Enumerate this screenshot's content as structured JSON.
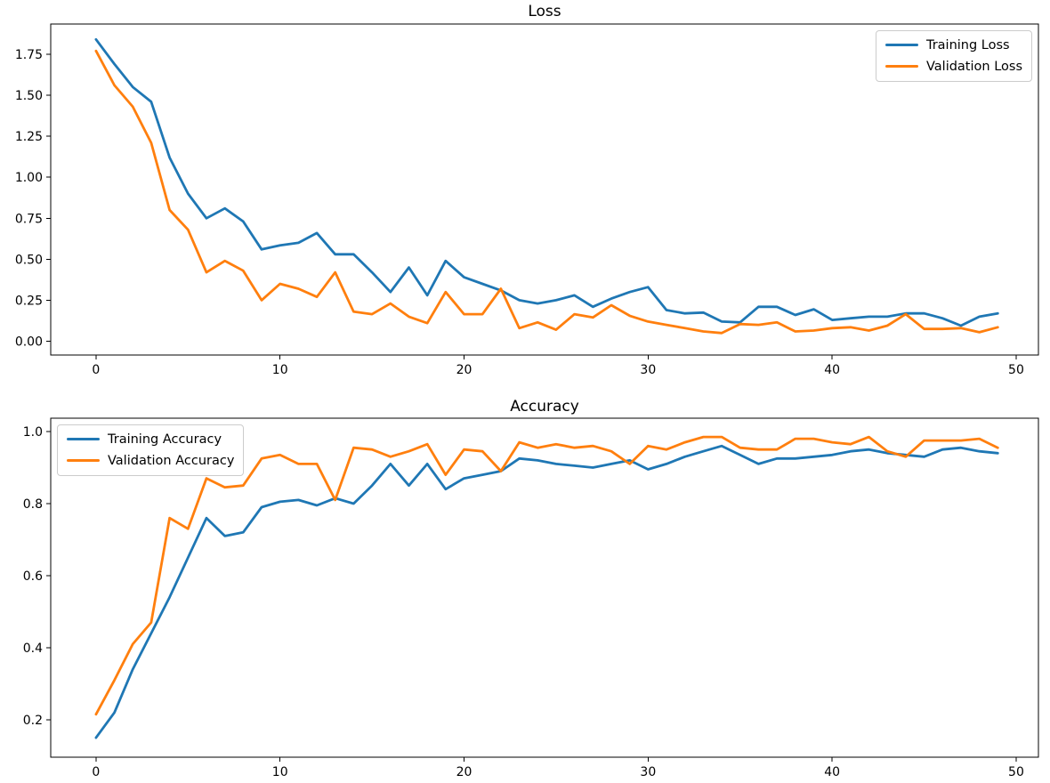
{
  "figure": {
    "background": "#ffffff",
    "axis_color": "#000000"
  },
  "chart_data": [
    {
      "type": "line",
      "title": "Loss",
      "xlabel": "",
      "ylabel": "",
      "grid": false,
      "legend_position": "upper right",
      "x_start": 0,
      "x_step": 1,
      "xlim": [
        -2.46,
        51.21
      ],
      "ylim": [
        -0.084,
        1.934
      ],
      "xticks": [
        0,
        10,
        20,
        30,
        40,
        50
      ],
      "xtick_labels": [
        "0",
        "10",
        "20",
        "30",
        "40",
        "50"
      ],
      "yticks": [
        0.0,
        0.25,
        0.5,
        0.75,
        1.0,
        1.25,
        1.5,
        1.75
      ],
      "ytick_labels": [
        "0.00",
        "0.25",
        "0.50",
        "0.75",
        "1.00",
        "1.25",
        "1.50",
        "1.75"
      ],
      "series": [
        {
          "name": "Training Loss",
          "color": "#1f77b4",
          "values": [
            1.84,
            1.69,
            1.55,
            1.46,
            1.12,
            0.9,
            0.75,
            0.81,
            0.73,
            0.56,
            0.585,
            0.6,
            0.66,
            0.53,
            0.53,
            0.42,
            0.3,
            0.45,
            0.28,
            0.49,
            0.39,
            0.35,
            0.31,
            0.25,
            0.23,
            0.25,
            0.28,
            0.21,
            0.26,
            0.3,
            0.33,
            0.19,
            0.17,
            0.175,
            0.12,
            0.115,
            0.21,
            0.21,
            0.16,
            0.195,
            0.13,
            0.14,
            0.15,
            0.15,
            0.17,
            0.17,
            0.14,
            0.095,
            0.15,
            0.17
          ]
        },
        {
          "name": "Validation Loss",
          "color": "#ff7f0e",
          "values": [
            1.77,
            1.56,
            1.43,
            1.21,
            0.8,
            0.68,
            0.42,
            0.49,
            0.43,
            0.25,
            0.35,
            0.32,
            0.27,
            0.42,
            0.18,
            0.165,
            0.23,
            0.15,
            0.11,
            0.3,
            0.165,
            0.165,
            0.32,
            0.08,
            0.115,
            0.07,
            0.165,
            0.145,
            0.22,
            0.155,
            0.12,
            0.1,
            0.08,
            0.06,
            0.05,
            0.105,
            0.1,
            0.115,
            0.06,
            0.065,
            0.08,
            0.085,
            0.065,
            0.095,
            0.165,
            0.075,
            0.075,
            0.08,
            0.055,
            0.085
          ]
        }
      ]
    },
    {
      "type": "line",
      "title": "Accuracy",
      "xlabel": "",
      "ylabel": "",
      "grid": false,
      "legend_position": "upper left",
      "x_start": 0,
      "x_step": 1,
      "xlim": [
        -2.46,
        51.21
      ],
      "ylim": [
        0.096,
        1.037
      ],
      "xticks": [
        0,
        10,
        20,
        30,
        40,
        50
      ],
      "xtick_labels": [
        "0",
        "10",
        "20",
        "30",
        "40",
        "50"
      ],
      "yticks": [
        0.2,
        0.4,
        0.6,
        0.8,
        1.0
      ],
      "ytick_labels": [
        "0.2",
        "0.4",
        "0.6",
        "0.8",
        "1.0"
      ],
      "series": [
        {
          "name": "Training Accuracy",
          "color": "#1f77b4",
          "values": [
            0.15,
            0.22,
            0.34,
            0.44,
            0.54,
            0.65,
            0.76,
            0.71,
            0.72,
            0.79,
            0.805,
            0.81,
            0.795,
            0.815,
            0.8,
            0.85,
            0.91,
            0.85,
            0.91,
            0.84,
            0.87,
            0.88,
            0.89,
            0.925,
            0.92,
            0.91,
            0.905,
            0.9,
            0.91,
            0.92,
            0.895,
            0.91,
            0.93,
            0.945,
            0.96,
            0.935,
            0.91,
            0.925,
            0.925,
            0.93,
            0.935,
            0.945,
            0.95,
            0.94,
            0.935,
            0.93,
            0.95,
            0.955,
            0.945,
            0.94
          ]
        },
        {
          "name": "Validation Accuracy",
          "color": "#ff7f0e",
          "values": [
            0.215,
            0.31,
            0.41,
            0.47,
            0.76,
            0.73,
            0.87,
            0.845,
            0.85,
            0.925,
            0.935,
            0.91,
            0.91,
            0.81,
            0.955,
            0.95,
            0.93,
            0.945,
            0.965,
            0.88,
            0.95,
            0.945,
            0.89,
            0.97,
            0.955,
            0.965,
            0.955,
            0.96,
            0.945,
            0.91,
            0.96,
            0.95,
            0.97,
            0.985,
            0.985,
            0.955,
            0.95,
            0.95,
            0.98,
            0.98,
            0.97,
            0.965,
            0.985,
            0.945,
            0.93,
            0.975,
            0.975,
            0.975,
            0.98,
            0.955
          ]
        }
      ]
    }
  ]
}
